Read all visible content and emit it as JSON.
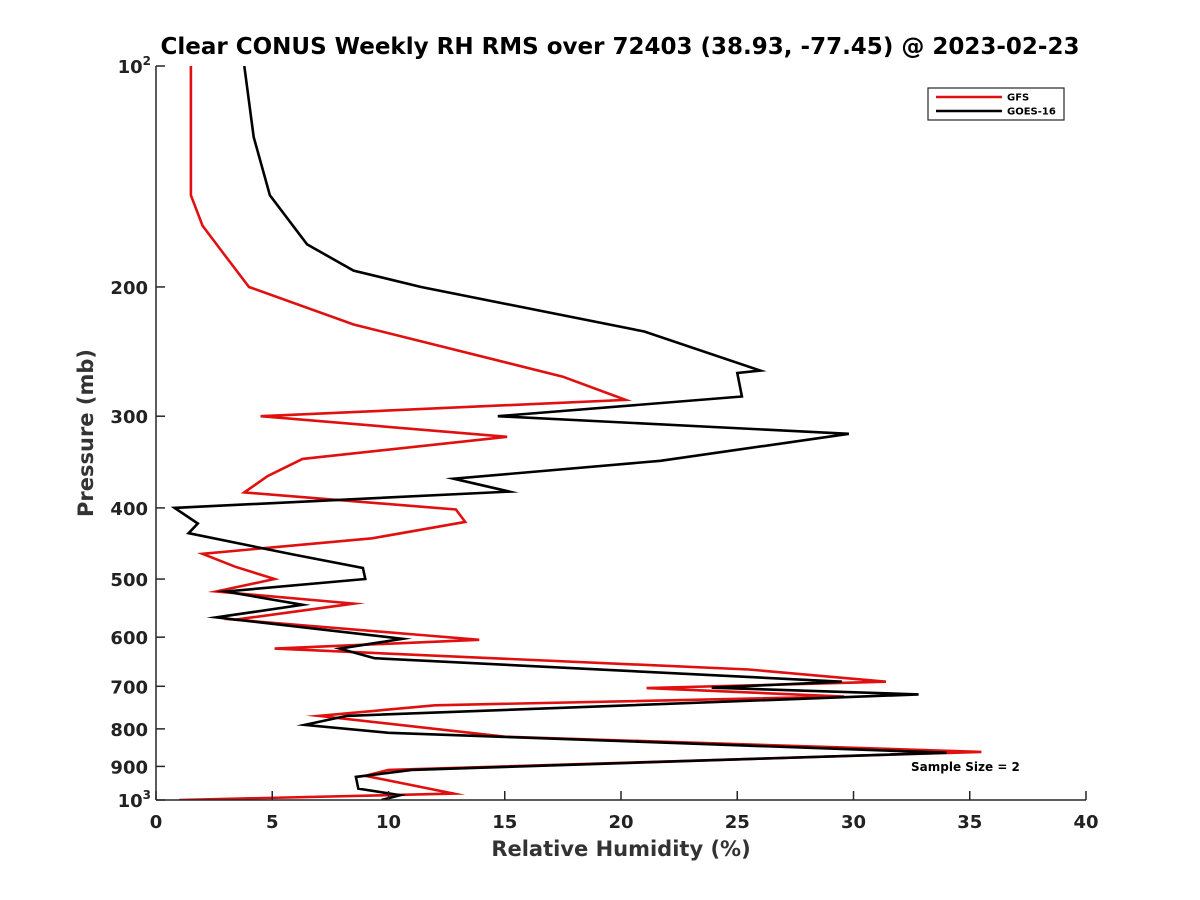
{
  "chart_data": {
    "type": "line",
    "title": "Clear CONUS Weekly RH RMS over 72403 (38.93, -77.45) @ 2023-02-23",
    "xlabel": "Relative Humidity (%)",
    "ylabel": "Pressure (mb)",
    "xlim": [
      0,
      40
    ],
    "ylim": [
      100,
      1000
    ],
    "yscale": "log",
    "y_reversed": true,
    "grid": false,
    "legend_position": "top-right",
    "x_ticks": [
      "0",
      "5",
      "10",
      "15",
      "20",
      "25",
      "30",
      "35",
      "40"
    ],
    "y_ticks": [
      {
        "value": 100,
        "label": "10",
        "sup": "2"
      },
      {
        "value": 200,
        "label": "200",
        "sup": ""
      },
      {
        "value": 300,
        "label": "300",
        "sup": ""
      },
      {
        "value": 400,
        "label": "400",
        "sup": ""
      },
      {
        "value": 500,
        "label": "500",
        "sup": ""
      },
      {
        "value": 600,
        "label": "600",
        "sup": ""
      },
      {
        "value": 700,
        "label": "700",
        "sup": ""
      },
      {
        "value": 800,
        "label": "800",
        "sup": ""
      },
      {
        "value": 900,
        "label": "900",
        "sup": ""
      },
      {
        "value": 1000,
        "label": "10",
        "sup": "3"
      }
    ],
    "annotation": "Sample Size = 2",
    "series": [
      {
        "name": "GFS",
        "color": "#e01010",
        "points": [
          [
            1.5,
            100
          ],
          [
            1.5,
            125
          ],
          [
            1.5,
            150
          ],
          [
            2.0,
            165
          ],
          [
            2.9,
            180
          ],
          [
            4.0,
            200
          ],
          [
            8.5,
            225
          ],
          [
            17.5,
            265
          ],
          [
            20.2,
            285
          ],
          [
            4.5,
            300
          ],
          [
            15.1,
            320
          ],
          [
            6.3,
            343
          ],
          [
            4.8,
            362
          ],
          [
            3.8,
            381
          ],
          [
            12.9,
            402
          ],
          [
            13.3,
            418
          ],
          [
            9.3,
            440
          ],
          [
            2.0,
            462
          ],
          [
            3.4,
            481
          ],
          [
            5.1,
            500
          ],
          [
            2.6,
            520
          ],
          [
            8.5,
            540
          ],
          [
            3.4,
            568
          ],
          [
            11.4,
            596
          ],
          [
            13.9,
            605
          ],
          [
            5.1,
            622
          ],
          [
            25.5,
            664
          ],
          [
            31.4,
            690
          ],
          [
            21.1,
            704
          ],
          [
            29.6,
            723
          ],
          [
            12.0,
            743
          ],
          [
            7.0,
            768
          ],
          [
            15.0,
            820
          ],
          [
            35.5,
            860
          ],
          [
            10.0,
            910
          ],
          [
            9.0,
            927
          ],
          [
            12.8,
            980
          ],
          [
            1.0,
            1000
          ]
        ]
      },
      {
        "name": "GOES-16",
        "color": "#000000",
        "points": [
          [
            3.8,
            100
          ],
          [
            4.2,
            125
          ],
          [
            4.9,
            150
          ],
          [
            6.5,
            175
          ],
          [
            8.5,
            190
          ],
          [
            11.4,
            200
          ],
          [
            21.0,
            230
          ],
          [
            26.0,
            260
          ],
          [
            25.0,
            262
          ],
          [
            25.2,
            282
          ],
          [
            14.7,
            300
          ],
          [
            29.8,
            317
          ],
          [
            21.7,
            345
          ],
          [
            12.8,
            365
          ],
          [
            15.2,
            380
          ],
          [
            0.8,
            400
          ],
          [
            1.8,
            420
          ],
          [
            1.4,
            433
          ],
          [
            5.9,
            463
          ],
          [
            8.9,
            483
          ],
          [
            9.0,
            500
          ],
          [
            3.0,
            520
          ],
          [
            6.3,
            542
          ],
          [
            2.6,
            564
          ],
          [
            10.6,
            603
          ],
          [
            7.9,
            622
          ],
          [
            9.4,
            641
          ],
          [
            29.5,
            690
          ],
          [
            23.9,
            703
          ],
          [
            32.8,
            718
          ],
          [
            8.2,
            768
          ],
          [
            6.4,
            790
          ],
          [
            10.0,
            810
          ],
          [
            34.0,
            862
          ],
          [
            11.0,
            910
          ],
          [
            8.6,
            930
          ],
          [
            8.7,
            965
          ],
          [
            10.5,
            985
          ],
          [
            9.7,
            1000
          ]
        ]
      }
    ]
  }
}
